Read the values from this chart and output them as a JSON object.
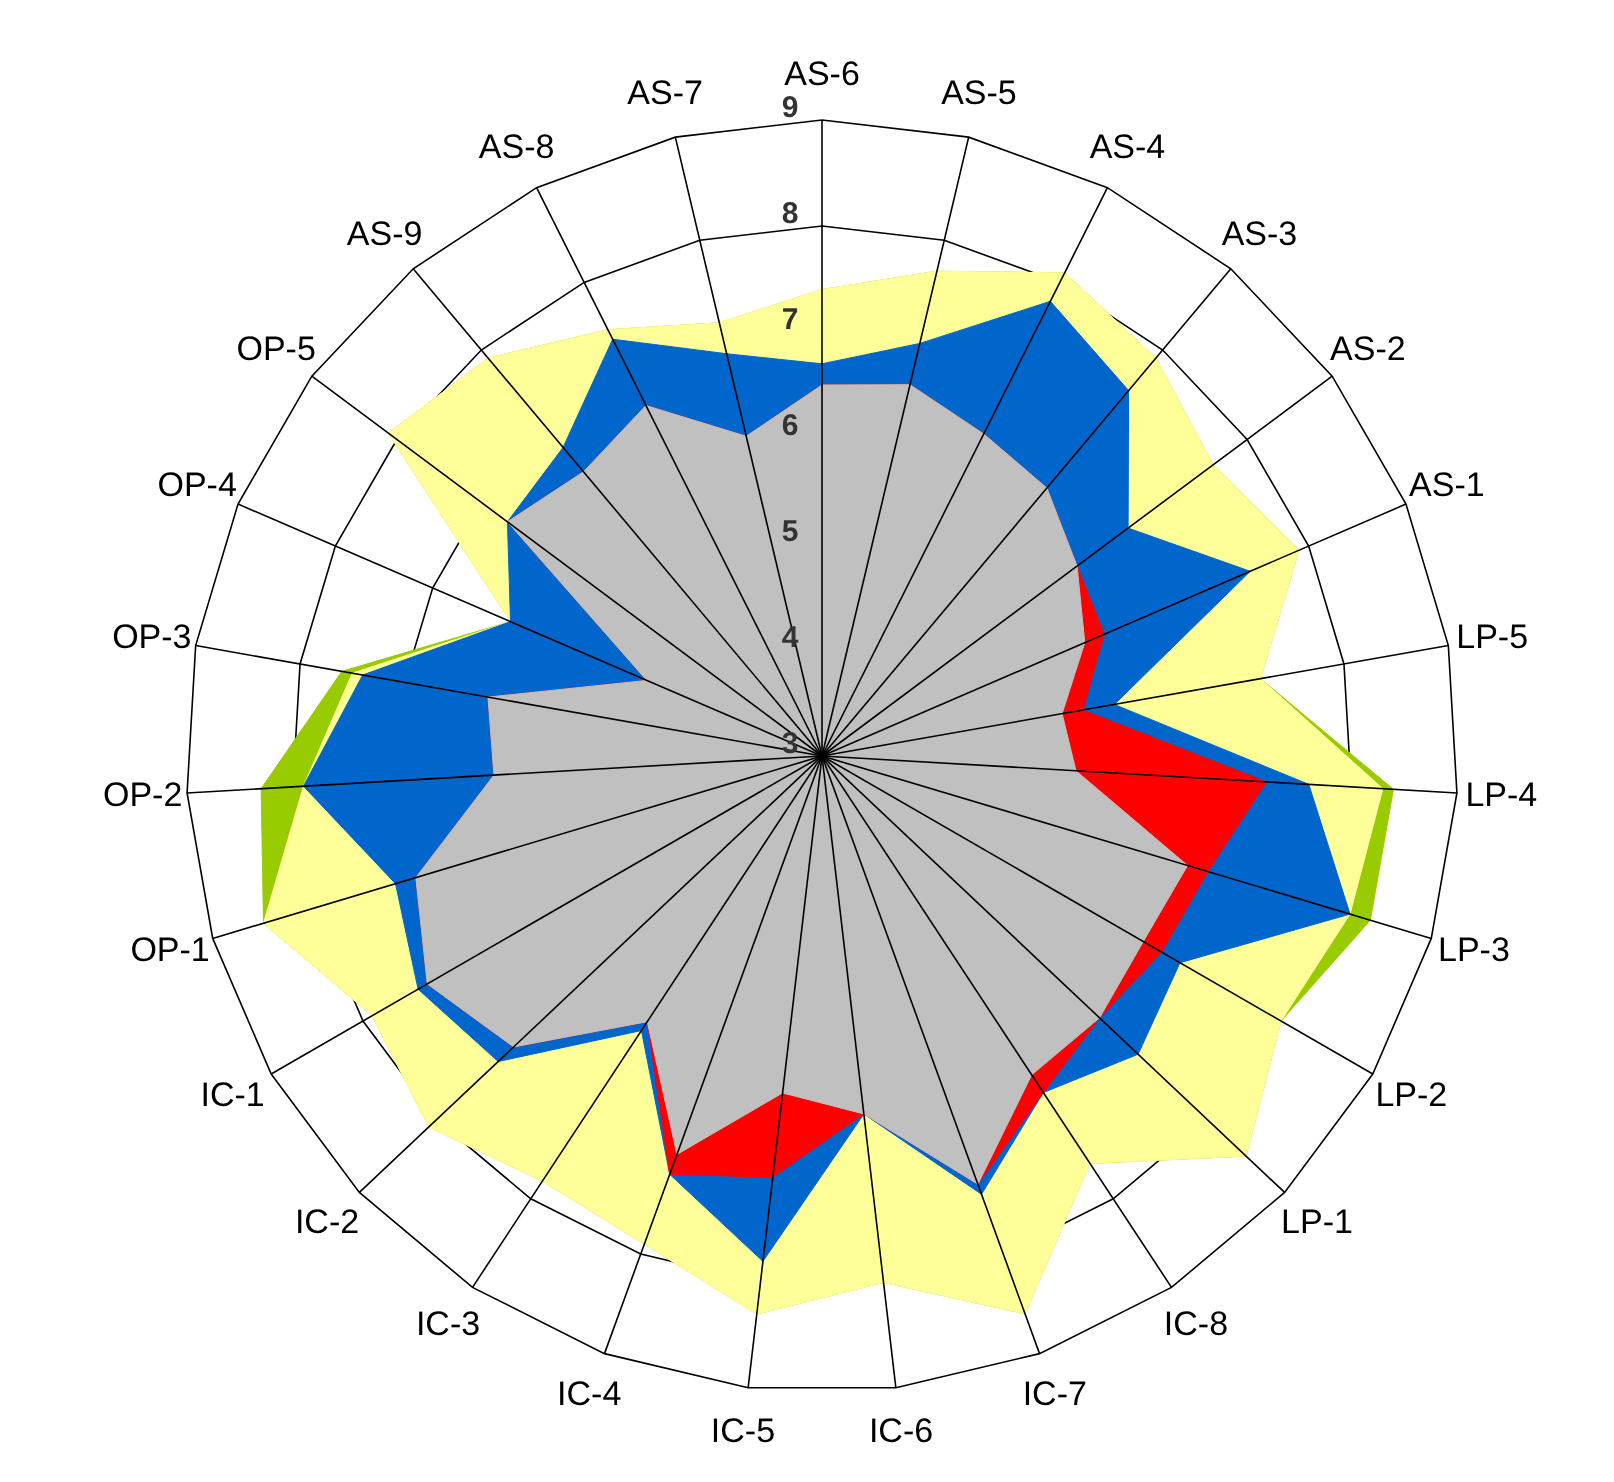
{
  "chart_data": {
    "type": "radar",
    "categories": [
      "AS-6",
      "AS-5",
      "AS-4",
      "AS-3",
      "AS-2",
      "AS-1",
      "LP-5",
      "LP-4",
      "LP-3",
      "LP-2",
      "LP-1",
      "IC-8",
      "IC-7",
      "IC-6",
      "IC-5",
      "IC-4",
      "IC-3",
      "IC-2",
      "IC-1",
      "OP-1",
      "OP-2",
      "OP-3",
      "OP-4",
      "OP-5",
      "AS-9",
      "AS-8",
      "AS-7"
    ],
    "ylim": [
      3,
      9
    ],
    "yticks": [
      3,
      4,
      5,
      6,
      7,
      8,
      9
    ],
    "grid": true,
    "series": [
      {
        "color": "#99cc00",
        "values": [
          7.4,
          7.7,
          8.1,
          7.9,
          7.6,
          7.9,
          7.2,
          8.4,
          8.4,
          8.0,
          8.5,
          7.6,
          8.6,
          8.0,
          8.3,
          7.9,
          7.8,
          8.1,
          7.9,
          8.5,
          8.3,
          7.6,
          6.2,
          8.1,
          7.9,
          7.5,
          7.2
        ]
      },
      {
        "color": "#ffff99",
        "values": [
          7.4,
          7.7,
          8.1,
          7.9,
          7.6,
          7.9,
          7.2,
          8.3,
          8.2,
          8.0,
          8.5,
          7.6,
          8.6,
          8.0,
          8.3,
          7.9,
          7.8,
          8.1,
          7.9,
          8.5,
          7.9,
          7.5,
          6.2,
          8.1,
          7.9,
          7.5,
          7.2
        ]
      },
      {
        "color": "#0066cc",
        "values": [
          6.7,
          7.0,
          7.8,
          7.5,
          6.6,
          7.4,
          5.8,
          7.6,
          8.2,
          6.9,
          7.1,
          6.8,
          7.4,
          6.4,
          7.8,
          7.2,
          6.1,
          7.2,
          7.4,
          7.2,
          7.9,
          7.4,
          6.2,
          6.7,
          6.8,
          7.4,
          6.9
        ]
      },
      {
        "color": "#ff0000",
        "values": [
          6.5,
          6.6,
          6.4,
          6.3,
          6.0,
          5.9,
          5.5,
          7.2,
          6.8,
          6.7,
          6.6,
          6.8,
          7.3,
          6.4,
          7.0,
          7.2,
          6.0,
          7.0,
          7.3,
          7.0,
          6.1,
          6.2,
          4.8,
          6.7,
          6.5,
          6.7,
          6.1
        ]
      },
      {
        "color": "#c0c0c0",
        "values": [
          6.5,
          6.6,
          6.4,
          6.3,
          6.0,
          5.7,
          5.3,
          5.4,
          6.6,
          6.5,
          6.6,
          6.6,
          7.3,
          6.4,
          6.2,
          7.0,
          6.0,
          7.0,
          7.3,
          7.0,
          6.1,
          6.2,
          4.8,
          6.7,
          6.5,
          6.7,
          6.1
        ]
      }
    ]
  }
}
